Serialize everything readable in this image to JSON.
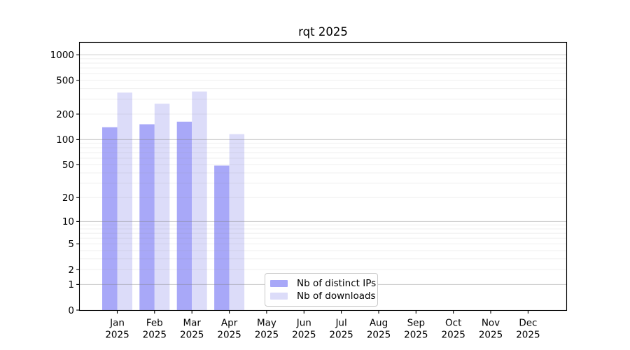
{
  "chart_data": {
    "type": "bar",
    "title": "rqt 2025",
    "categories": [
      "Jan",
      "Feb",
      "Mar",
      "Apr",
      "May",
      "Jun",
      "Jul",
      "Aug",
      "Sep",
      "Oct",
      "Nov",
      "Dec"
    ],
    "year_label": "2025",
    "series": [
      {
        "name": "Nb of distinct IPs",
        "color": "#a8a8f8",
        "values": [
          140,
          152,
          163,
          49,
          0,
          0,
          0,
          0,
          0,
          0,
          0,
          0
        ]
      },
      {
        "name": "Nb of downloads",
        "color": "#dcdcf9",
        "values": [
          359,
          266,
          370,
          116,
          0,
          0,
          0,
          0,
          0,
          0,
          0,
          0
        ]
      }
    ],
    "yscale": "log1p",
    "yticks": [
      0,
      1,
      2,
      5,
      10,
      20,
      50,
      100,
      200,
      500,
      1000
    ],
    "ylim": [
      0,
      1388
    ],
    "xlabel": "",
    "ylabel": "",
    "grid": "horizontal, major lines at 1/10/100/1000 darker, minor lines faint, drawn above bars",
    "legend_position": "lower center inside plot",
    "colors": {
      "major_grid": "rgba(128,128,128,0.42)",
      "minor_grid": "rgba(128,128,128,0.13)",
      "axis": "#000000",
      "background": "#ffffff"
    }
  }
}
